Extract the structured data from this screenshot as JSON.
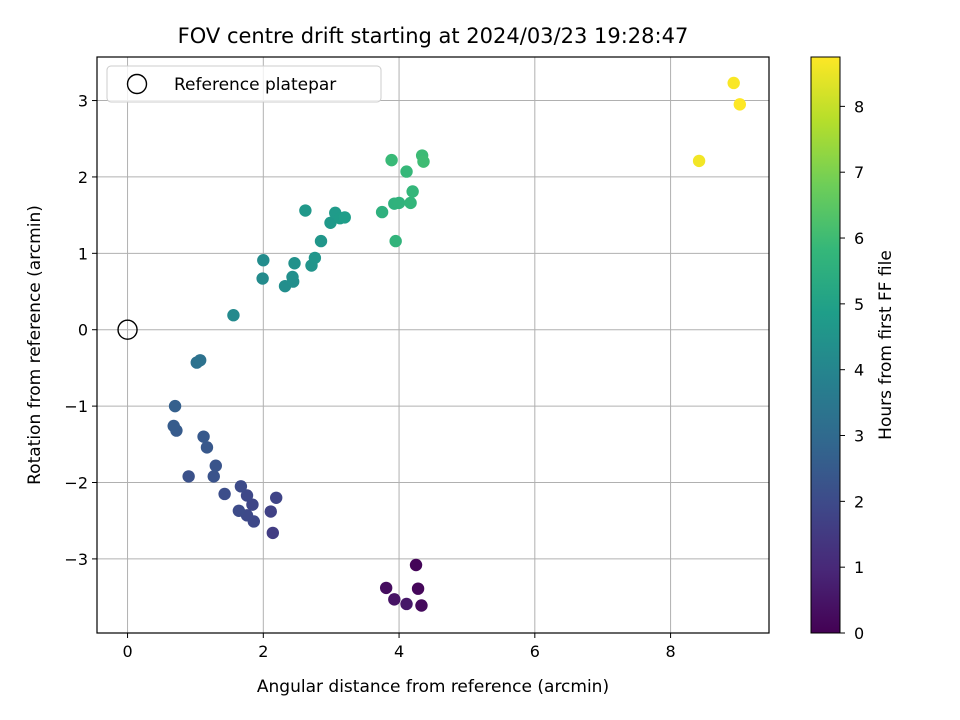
{
  "chart_data": {
    "type": "scatter",
    "title": "FOV centre drift starting at 2024/03/23 19:28:47",
    "xlabel": "Angular distance from reference (arcmin)",
    "ylabel": "Rotation from reference (arcmin)",
    "xlim": [
      -0.45,
      9.45
    ],
    "ylim": [
      -3.97,
      3.57
    ],
    "xticks": [
      0,
      2,
      4,
      6,
      8
    ],
    "yticks": [
      -3,
      -2,
      -1,
      0,
      1,
      2,
      3
    ],
    "xtick_labels": [
      "0",
      "2",
      "4",
      "6",
      "8"
    ],
    "ytick_labels": [
      "−3",
      "−2",
      "−1",
      "0",
      "1",
      "2",
      "3"
    ],
    "grid": true,
    "legend": {
      "position": "top-left",
      "entries": [
        "Reference platepar"
      ]
    },
    "reference_point": {
      "x": 0,
      "y": 0
    },
    "colorbar": {
      "label": "Hours from first FF file",
      "colormap": "viridis",
      "range": [
        0,
        8.75
      ],
      "ticks": [
        0,
        1,
        2,
        3,
        4,
        5,
        6,
        7,
        8
      ],
      "tick_labels": [
        "0",
        "1",
        "2",
        "3",
        "4",
        "5",
        "6",
        "7",
        "8"
      ]
    },
    "points": [
      {
        "x": 4.25,
        "y": -3.08,
        "c": 0.1
      },
      {
        "x": 3.81,
        "y": -3.38,
        "c": 0.3
      },
      {
        "x": 3.93,
        "y": -3.53,
        "c": 0.45
      },
      {
        "x": 4.28,
        "y": -3.39,
        "c": 0.15
      },
      {
        "x": 4.11,
        "y": -3.59,
        "c": 0.55
      },
      {
        "x": 4.33,
        "y": -3.61,
        "c": 0.25
      },
      {
        "x": 2.14,
        "y": -2.66,
        "c": 1.6
      },
      {
        "x": 2.11,
        "y": -2.38,
        "c": 1.7
      },
      {
        "x": 2.19,
        "y": -2.2,
        "c": 1.8
      },
      {
        "x": 1.86,
        "y": -2.51,
        "c": 1.9
      },
      {
        "x": 1.76,
        "y": -2.43,
        "c": 1.95
      },
      {
        "x": 1.64,
        "y": -2.37,
        "c": 2.0
      },
      {
        "x": 1.84,
        "y": -2.29,
        "c": 1.85
      },
      {
        "x": 1.76,
        "y": -2.17,
        "c": 1.9
      },
      {
        "x": 1.67,
        "y": -2.05,
        "c": 2.0
      },
      {
        "x": 1.43,
        "y": -2.15,
        "c": 2.1
      },
      {
        "x": 0.9,
        "y": -1.92,
        "c": 2.2
      },
      {
        "x": 1.27,
        "y": -1.92,
        "c": 2.25
      },
      {
        "x": 1.3,
        "y": -1.78,
        "c": 2.3
      },
      {
        "x": 1.17,
        "y": -1.54,
        "c": 2.4
      },
      {
        "x": 1.12,
        "y": -1.4,
        "c": 2.45
      },
      {
        "x": 0.72,
        "y": -1.32,
        "c": 2.5
      },
      {
        "x": 0.68,
        "y": -1.26,
        "c": 2.55
      },
      {
        "x": 0.7,
        "y": -1.0,
        "c": 2.65
      },
      {
        "x": 1.02,
        "y": -0.43,
        "c": 3.25
      },
      {
        "x": 1.07,
        "y": -0.4,
        "c": 3.3
      },
      {
        "x": 1.56,
        "y": 0.19,
        "c": 4.15
      },
      {
        "x": 1.99,
        "y": 0.67,
        "c": 4.2
      },
      {
        "x": 2.0,
        "y": 0.91,
        "c": 4.25
      },
      {
        "x": 2.32,
        "y": 0.57,
        "c": 4.3
      },
      {
        "x": 2.44,
        "y": 0.63,
        "c": 4.35
      },
      {
        "x": 2.43,
        "y": 0.69,
        "c": 4.35
      },
      {
        "x": 2.46,
        "y": 0.87,
        "c": 4.4
      },
      {
        "x": 2.71,
        "y": 0.84,
        "c": 4.5
      },
      {
        "x": 2.76,
        "y": 0.94,
        "c": 4.55
      },
      {
        "x": 2.85,
        "y": 1.16,
        "c": 4.6
      },
      {
        "x": 2.62,
        "y": 1.56,
        "c": 4.65
      },
      {
        "x": 2.99,
        "y": 1.4,
        "c": 4.7
      },
      {
        "x": 3.06,
        "y": 1.53,
        "c": 4.75
      },
      {
        "x": 3.13,
        "y": 1.46,
        "c": 4.8
      },
      {
        "x": 3.2,
        "y": 1.47,
        "c": 4.85
      },
      {
        "x": 3.75,
        "y": 1.54,
        "c": 5.55
      },
      {
        "x": 3.93,
        "y": 1.65,
        "c": 5.6
      },
      {
        "x": 4.0,
        "y": 1.66,
        "c": 5.65
      },
      {
        "x": 3.95,
        "y": 1.16,
        "c": 5.7
      },
      {
        "x": 4.17,
        "y": 1.66,
        "c": 5.75
      },
      {
        "x": 4.2,
        "y": 1.81,
        "c": 5.8
      },
      {
        "x": 4.11,
        "y": 2.07,
        "c": 5.85
      },
      {
        "x": 3.89,
        "y": 2.22,
        "c": 5.9
      },
      {
        "x": 4.34,
        "y": 2.28,
        "c": 5.95
      },
      {
        "x": 4.36,
        "y": 2.2,
        "c": 6.0
      },
      {
        "x": 8.42,
        "y": 2.21,
        "c": 8.6
      },
      {
        "x": 8.93,
        "y": 3.23,
        "c": 8.7
      },
      {
        "x": 9.02,
        "y": 2.95,
        "c": 8.75
      }
    ]
  }
}
